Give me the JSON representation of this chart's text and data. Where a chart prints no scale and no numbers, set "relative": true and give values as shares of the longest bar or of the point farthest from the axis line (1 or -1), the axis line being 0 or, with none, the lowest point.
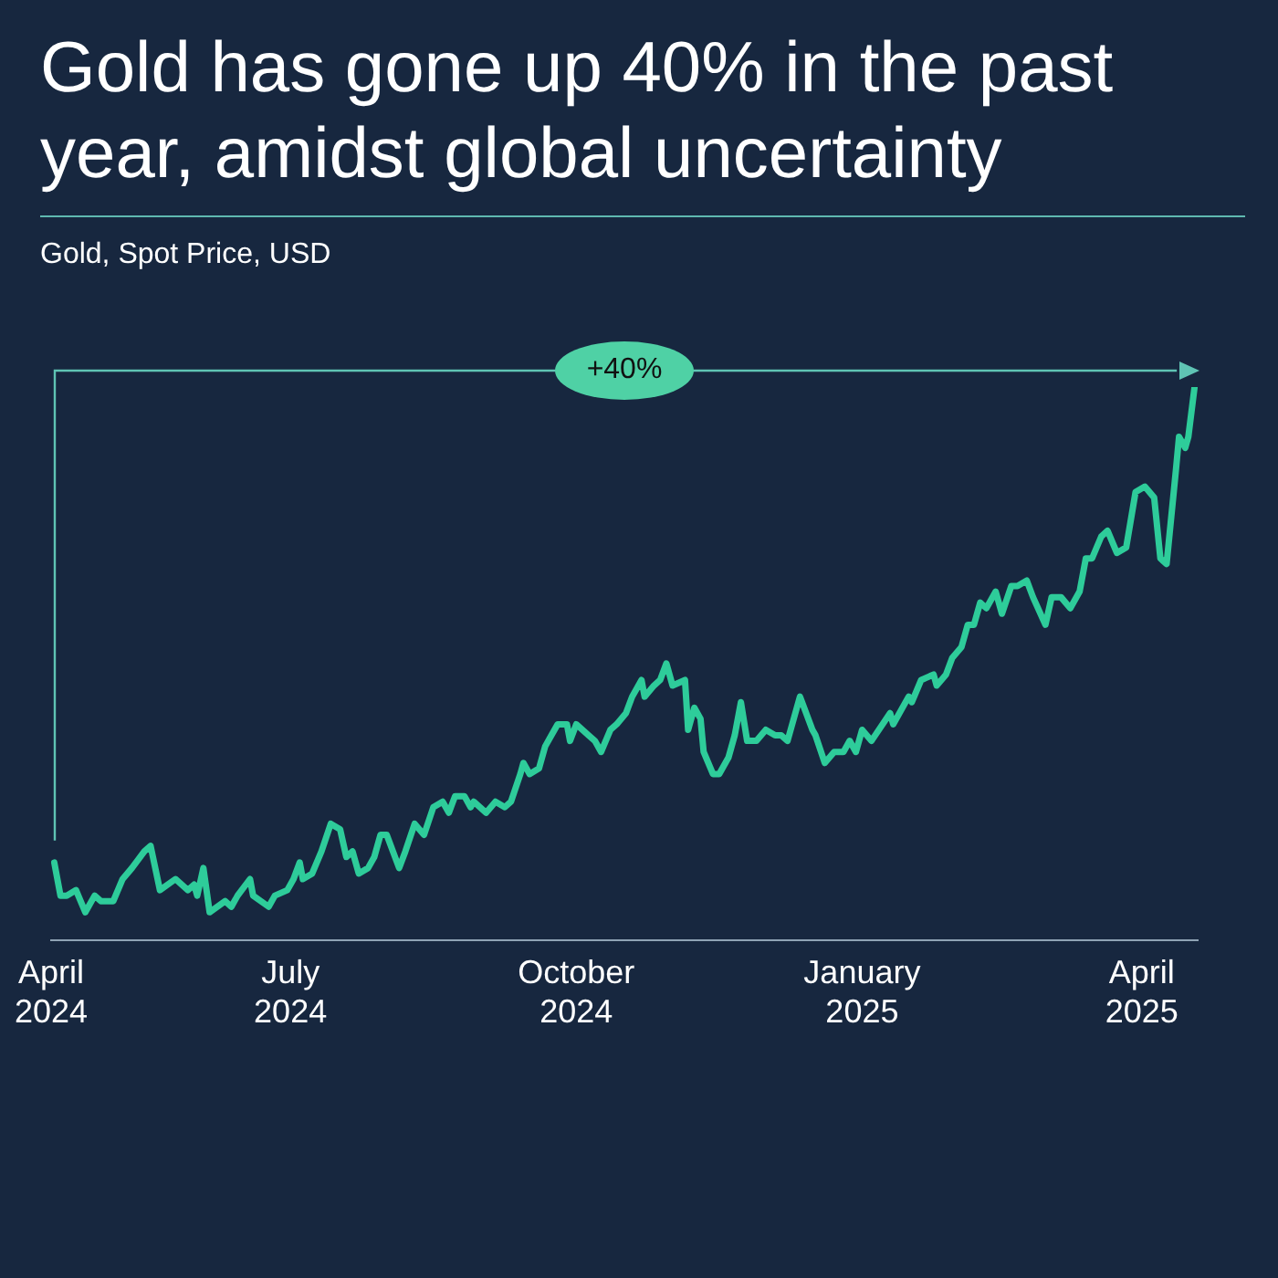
{
  "chart_data": {
    "type": "line",
    "title": "Gold has gone up 40% in the past year, amidst global uncertainty",
    "subtitle": "Gold, Spot Price, USD",
    "relative": true,
    "annotations": [
      "+40%"
    ],
    "xlim": [
      "2024-04-15",
      "2025-04-19"
    ],
    "xticks": [
      {
        "value": "2024-04-15",
        "label": "April 2024"
      },
      {
        "value": "2024-07-01",
        "label": "July 2024"
      },
      {
        "value": "2024-10-01",
        "label": "October 2024"
      },
      {
        "value": "2025-01-01",
        "label": "January 2025"
      },
      {
        "value": "2025-04-01",
        "label": "April 2025"
      }
    ],
    "x": [
      "2024-04-16",
      "2024-04-18",
      "2024-04-20",
      "2024-04-23",
      "2024-04-26",
      "2024-04-29",
      "2024-05-01",
      "2024-05-05",
      "2024-05-08",
      "2024-05-11",
      "2024-05-15",
      "2024-05-17",
      "2024-05-20",
      "2024-05-25",
      "2024-05-29",
      "2024-05-31",
      "2024-06-01",
      "2024-06-03",
      "2024-06-05",
      "2024-06-10",
      "2024-06-12",
      "2024-06-14",
      "2024-06-18",
      "2024-06-19",
      "2024-06-24",
      "2024-06-26",
      "2024-06-30",
      "2024-07-02",
      "2024-07-04",
      "2024-07-05",
      "2024-07-08",
      "2024-07-11",
      "2024-07-14",
      "2024-07-17",
      "2024-07-19",
      "2024-07-21",
      "2024-07-23",
      "2024-07-26",
      "2024-07-28",
      "2024-07-30",
      "2024-08-01",
      "2024-08-05",
      "2024-08-07",
      "2024-08-10",
      "2024-08-13",
      "2024-08-16",
      "2024-08-19",
      "2024-08-21",
      "2024-08-23",
      "2024-08-26",
      "2024-08-28",
      "2024-08-29",
      "2024-09-02",
      "2024-09-05",
      "2024-09-08",
      "2024-09-10",
      "2024-09-13",
      "2024-09-14",
      "2024-09-16",
      "2024-09-19",
      "2024-09-21",
      "2024-09-23",
      "2024-09-25",
      "2024-09-28",
      "2024-09-29",
      "2024-10-01",
      "2024-10-05",
      "2024-10-07",
      "2024-10-09",
      "2024-10-12",
      "2024-10-14",
      "2024-10-17",
      "2024-10-19",
      "2024-10-22",
      "2024-10-23",
      "2024-10-26",
      "2024-10-28",
      "2024-10-30",
      "2024-11-01",
      "2024-11-05",
      "2024-11-06",
      "2024-11-08",
      "2024-11-10",
      "2024-11-11",
      "2024-11-14",
      "2024-11-16",
      "2024-11-19",
      "2024-11-21",
      "2024-11-23",
      "2024-11-25",
      "2024-11-28",
      "2024-12-01",
      "2024-12-04",
      "2024-12-06",
      "2024-12-08",
      "2024-12-12",
      "2024-12-16",
      "2024-12-17",
      "2024-12-20",
      "2024-12-23",
      "2024-12-26",
      "2024-12-28",
      "2024-12-30",
      "2025-01-01",
      "2025-01-04",
      "2025-01-10",
      "2025-01-11",
      "2025-01-16",
      "2025-01-17",
      "2025-01-20",
      "2025-01-24",
      "2025-01-25",
      "2025-01-28",
      "2025-01-30",
      "2025-02-02",
      "2025-02-04",
      "2025-02-06",
      "2025-02-08",
      "2025-02-10",
      "2025-02-13",
      "2025-02-15",
      "2025-02-18",
      "2025-02-20",
      "2025-02-23",
      "2025-02-25",
      "2025-03-01",
      "2025-03-03",
      "2025-03-06",
      "2025-03-09",
      "2025-03-12",
      "2025-03-14",
      "2025-03-16",
      "2025-03-19",
      "2025-03-21",
      "2025-03-24",
      "2025-03-27",
      "2025-03-30",
      "2025-04-02",
      "2025-04-05",
      "2025-04-07",
      "2025-04-09",
      "2025-04-12",
      "2025-04-13",
      "2025-04-15",
      "2025-04-16",
      "2025-04-18"
    ],
    "series": [
      {
        "color": "#2ecc9a",
        "values": [
          0.14,
          0.08,
          0.08,
          0.09,
          0.05,
          0.08,
          0.07,
          0.07,
          0.11,
          0.13,
          0.16,
          0.17,
          0.09,
          0.11,
          0.09,
          0.1,
          0.08,
          0.13,
          0.05,
          0.07,
          0.06,
          0.08,
          0.11,
          0.08,
          0.06,
          0.08,
          0.09,
          0.11,
          0.14,
          0.11,
          0.12,
          0.16,
          0.21,
          0.2,
          0.15,
          0.16,
          0.12,
          0.13,
          0.15,
          0.19,
          0.19,
          0.13,
          0.16,
          0.21,
          0.19,
          0.24,
          0.25,
          0.23,
          0.26,
          0.26,
          0.24,
          0.25,
          0.23,
          0.25,
          0.24,
          0.25,
          0.3,
          0.32,
          0.3,
          0.31,
          0.35,
          0.37,
          0.39,
          0.39,
          0.36,
          0.39,
          0.37,
          0.36,
          0.34,
          0.38,
          0.39,
          0.41,
          0.44,
          0.47,
          0.44,
          0.46,
          0.47,
          0.5,
          0.46,
          0.47,
          0.38,
          0.42,
          0.4,
          0.34,
          0.3,
          0.3,
          0.33,
          0.37,
          0.43,
          0.36,
          0.36,
          0.38,
          0.37,
          0.37,
          0.36,
          0.44,
          0.38,
          0.37,
          0.32,
          0.34,
          0.34,
          0.36,
          0.34,
          0.38,
          0.36,
          0.41,
          0.39,
          0.44,
          0.43,
          0.47,
          0.48,
          0.46,
          0.48,
          0.51,
          0.53,
          0.57,
          0.57,
          0.61,
          0.6,
          0.63,
          0.59,
          0.64,
          0.64,
          0.65,
          0.62,
          0.57,
          0.62,
          0.62,
          0.6,
          0.63,
          0.69,
          0.69,
          0.73,
          0.74,
          0.7,
          0.71,
          0.81,
          0.82,
          0.8,
          0.69,
          0.68,
          0.85,
          0.91,
          0.89,
          0.91,
          1
        ]
      }
    ]
  }
}
